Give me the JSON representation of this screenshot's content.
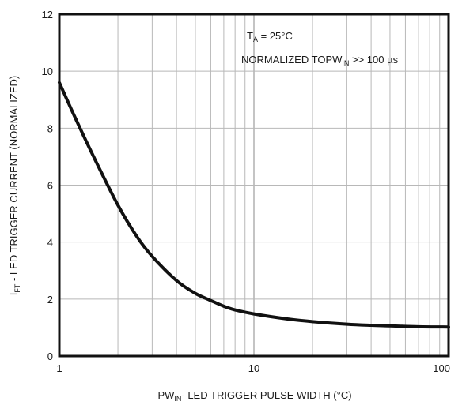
{
  "chart_data": {
    "type": "line",
    "x_scale": "log",
    "xlim": [
      1,
      100
    ],
    "ylim": [
      0,
      12
    ],
    "x_ticks": [
      1,
      10,
      100
    ],
    "y_ticks": [
      0,
      2,
      4,
      6,
      8,
      10,
      12
    ],
    "grid": true,
    "xlabel_main": "PW",
    "xlabel_sub": "IN",
    "xlabel_rest": "- LED TRIGGER PULSE WIDTH (°C)",
    "ylabel_main": "I",
    "ylabel_sub": "FT",
    "ylabel_rest": " - LED TRIGGER CURRENT (NORMALIZED)",
    "annotations": {
      "ta_main": "T",
      "ta_sub": "A",
      "ta_rest": " = 25°C",
      "norm_main": "NORMALIZED TO",
      "norm_pw": "PW",
      "norm_pw_sub": "IN",
      "norm_rest": " >> 100 µs"
    },
    "series": [
      {
        "x": [
          1,
          1.2,
          1.5,
          2,
          2.5,
          3,
          4,
          5,
          6,
          7,
          8,
          10,
          15,
          20,
          30,
          40,
          50,
          70,
          100
        ],
        "y": [
          9.6,
          8.4,
          7.0,
          5.3,
          4.2,
          3.5,
          2.65,
          2.2,
          1.95,
          1.75,
          1.62,
          1.48,
          1.3,
          1.21,
          1.12,
          1.08,
          1.06,
          1.03,
          1.02
        ]
      }
    ]
  }
}
